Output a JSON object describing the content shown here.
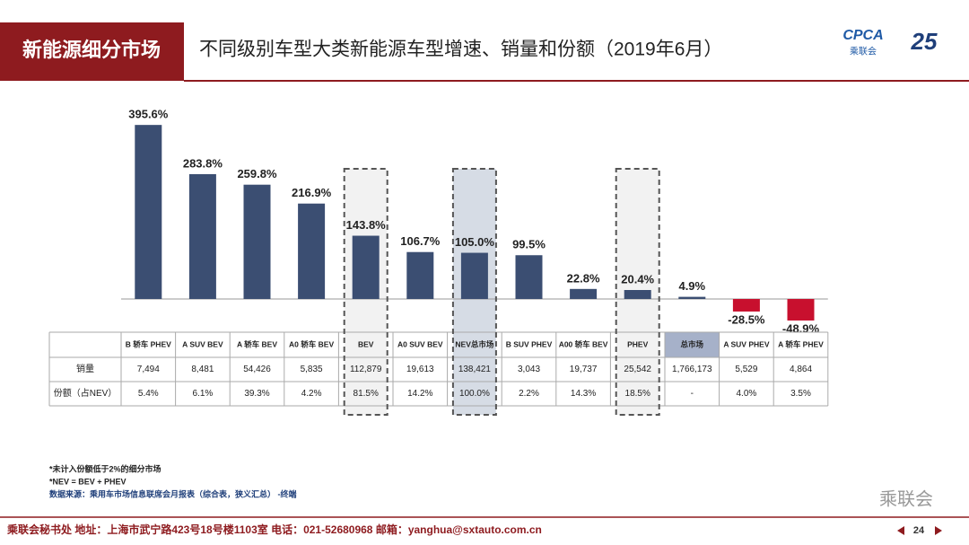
{
  "header": {
    "section": "新能源细分市场",
    "title": "不同级别车型大类新能源车型增速、销量和份额（2019年6月）",
    "logo_text": "CPCA",
    "logo_sub": "乘联会",
    "logo_num": "25"
  },
  "chart_data": {
    "type": "bar",
    "categories": [
      "B 轿车 PHEV",
      "A SUV BEV",
      "A 轿车 BEV",
      "A0 轿车 BEV",
      "BEV",
      "A0 SUV BEV",
      "NEV总市场",
      "B SUV PHEV",
      "A00 轿车 BEV",
      "PHEV",
      "总市场",
      "A SUV PHEV",
      "A 轿车 PHEV"
    ],
    "values": [
      395.6,
      283.8,
      259.8,
      216.9,
      143.8,
      106.7,
      105.0,
      99.5,
      22.8,
      20.4,
      4.9,
      -28.5,
      -48.9
    ],
    "value_labels": [
      "395.6%",
      "283.8%",
      "259.8%",
      "216.9%",
      "143.8%",
      "106.7%",
      "105.0%",
      "99.5%",
      "22.8%",
      "20.4%",
      "4.9%",
      "-28.5%",
      "-48.9%"
    ],
    "color": "#3b4e72",
    "negative_color": "#c8102e"
  },
  "table": {
    "row_labels": [
      "销量",
      "份额（占NEV）"
    ],
    "rows": [
      [
        "7,494",
        "8,481",
        "54,426",
        "5,835",
        "112,879",
        "19,613",
        "138,421",
        "3,043",
        "19,737",
        "25,542",
        "1,766,173",
        "5,529",
        "4,864"
      ],
      [
        "5.4%",
        "6.1%",
        "39.3%",
        "4.2%",
        "81.5%",
        "14.2%",
        "100.0%",
        "2.2%",
        "14.3%",
        "18.5%",
        "-",
        "4.0%",
        "3.5%"
      ]
    ]
  },
  "notes": [
    "*未计入份额低于2%的细分市场",
    "*NEV = BEV + PHEV",
    "数据来源：乘用车市场信息联席会月报表（综合表，狭义汇总） -终端"
  ],
  "footer": {
    "text": "乘联会秘书处  地址：上海市武宁路423号18号楼1103室  电话：021-52680968  邮箱：yanghua@sxtauto.com.cn",
    "page": "24",
    "watermark": "乘联会"
  }
}
